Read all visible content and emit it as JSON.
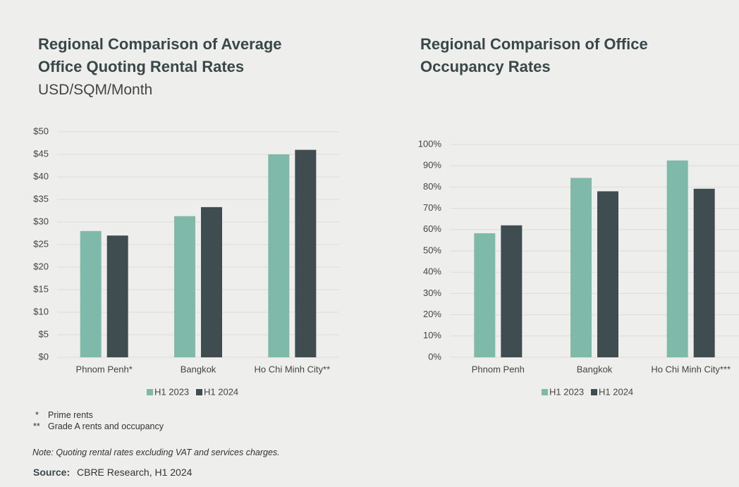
{
  "chart_data": [
    {
      "type": "bar",
      "title": "Regional Comparison of Average Office Quoting Rental Rates",
      "subtitle": "USD/SQM/Month",
      "categories": [
        "Phnom Penh*",
        "Bangkok",
        "Ho Chi Minh City**"
      ],
      "series": [
        {
          "name": "H1 2023",
          "color": "#7fb9a9",
          "values": [
            28,
            31.3,
            45
          ]
        },
        {
          "name": "H1 2024",
          "color": "#3f4d50",
          "values": [
            27,
            33.3,
            46
          ]
        }
      ],
      "ylim": [
        0,
        50
      ],
      "yticks": [
        {
          "value": 0,
          "label": "$0"
        },
        {
          "value": 5,
          "label": "$5"
        },
        {
          "value": 10,
          "label": "$10"
        },
        {
          "value": 15,
          "label": "$15"
        },
        {
          "value": 20,
          "label": "$20"
        },
        {
          "value": 25,
          "label": "$25"
        },
        {
          "value": 30,
          "label": "$30"
        },
        {
          "value": 35,
          "label": "$35"
        },
        {
          "value": 40,
          "label": "$40"
        },
        {
          "value": 45,
          "label": "$45"
        },
        {
          "value": 50,
          "label": "$50"
        }
      ],
      "grid": true,
      "legend": "bottom"
    },
    {
      "type": "bar",
      "title": "Regional Comparison of Office Occupancy Rates",
      "categories": [
        "Phnom Penh",
        "Bangkok",
        "Ho Chi Minh City***"
      ],
      "series": [
        {
          "name": "H1 2023",
          "color": "#7fb9a9",
          "values": [
            58.3,
            84.3,
            92.5
          ]
        },
        {
          "name": "H1 2024",
          "color": "#3f4d50",
          "values": [
            62,
            78,
            79.2
          ]
        }
      ],
      "ylim": [
        0,
        100
      ],
      "yticks": [
        {
          "value": 0,
          "label": "0%"
        },
        {
          "value": 10,
          "label": "10%"
        },
        {
          "value": 20,
          "label": "20%"
        },
        {
          "value": 30,
          "label": "30%"
        },
        {
          "value": 40,
          "label": "40%"
        },
        {
          "value": 50,
          "label": "50%"
        },
        {
          "value": 60,
          "label": "60%"
        },
        {
          "value": 70,
          "label": "70%"
        },
        {
          "value": 80,
          "label": "80%"
        },
        {
          "value": 90,
          "label": "90%"
        },
        {
          "value": 100,
          "label": "100%"
        }
      ],
      "grid": true,
      "legend": "bottom"
    }
  ],
  "footnotes": [
    {
      "mark": "*",
      "text": "Prime rents"
    },
    {
      "mark": "**",
      "text": "Grade A rents and occupancy"
    }
  ],
  "note": "Note: Quoting rental rates excluding VAT and services charges.",
  "source": {
    "label": "Source:",
    "text": "CBRE Research, H1 2024"
  }
}
